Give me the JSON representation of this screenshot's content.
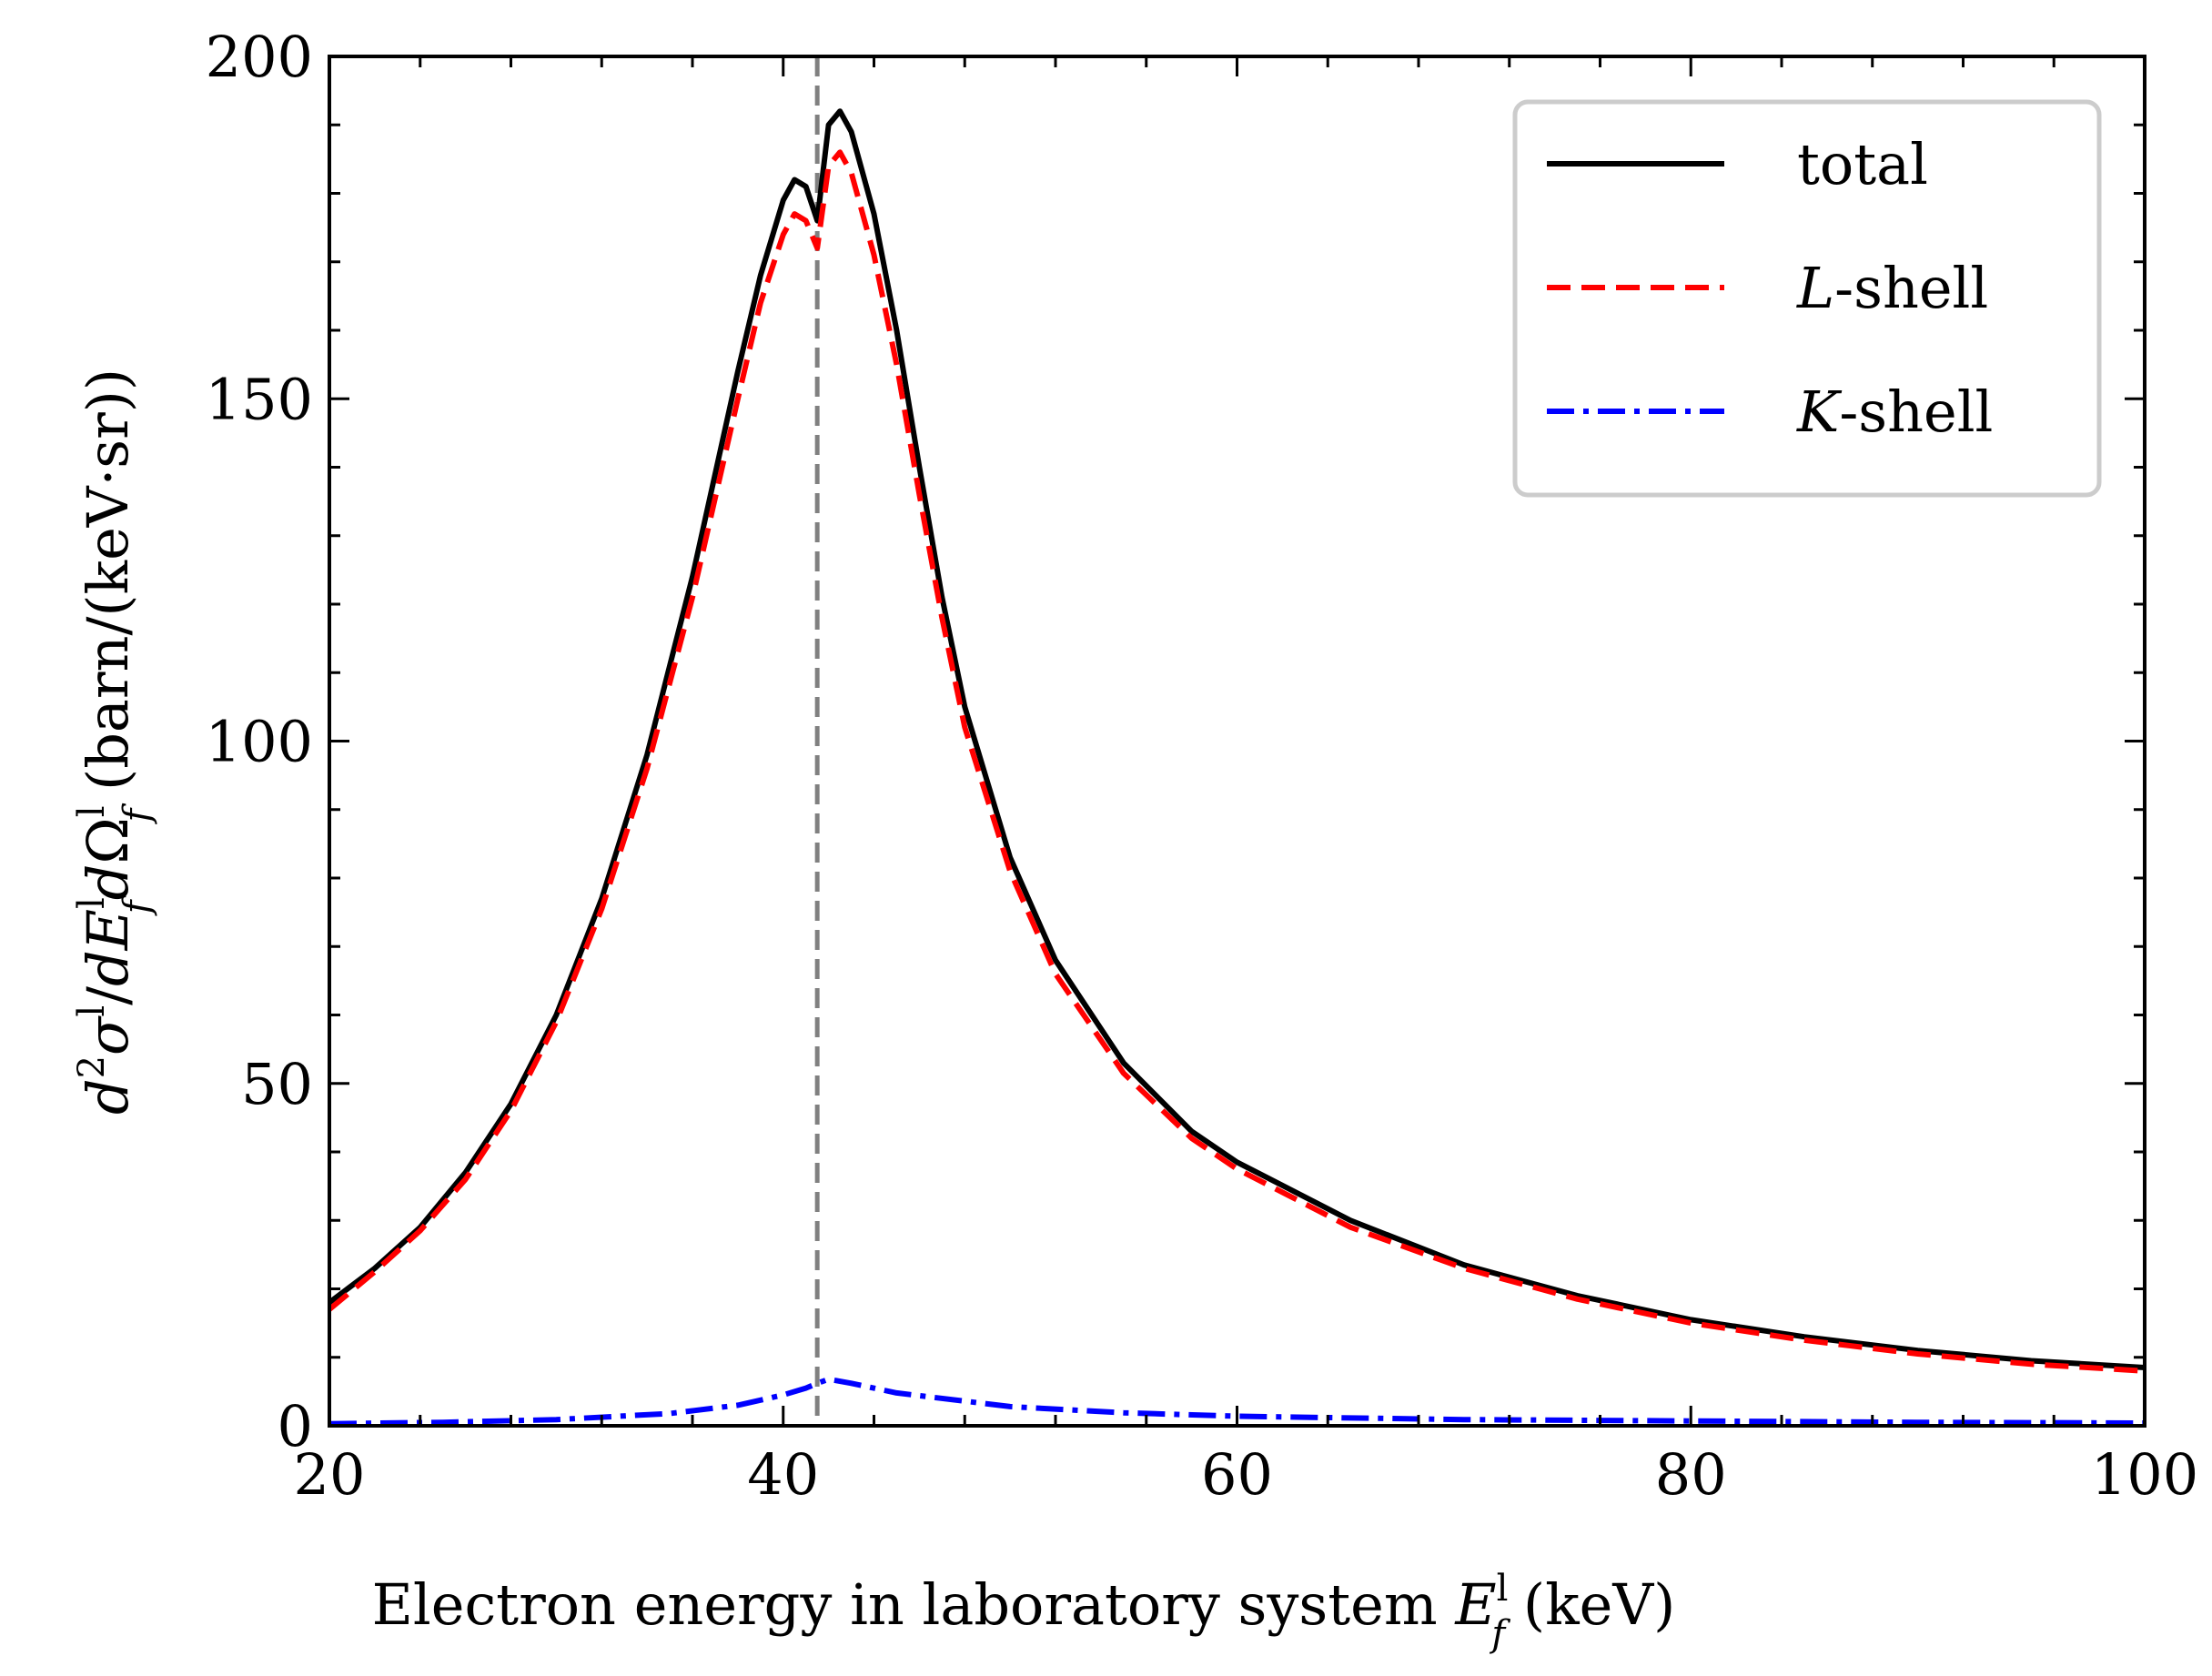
{
  "chart_data": {
    "type": "line",
    "title": "",
    "xlabel": "Electron energy in laboratory system E_f^l (keV)",
    "xlabel_parts": {
      "main": "Electron energy in laboratory system ",
      "var": "E",
      "sup": "l",
      "sub": "f",
      "unit": " (keV)"
    },
    "ylabel": "d²σ^l/dE_f^l dΩ_f^l (barn/(keV·sr))",
    "ylabel_parts": {
      "lhs": "d²σ",
      "sup1": "l",
      "mid": "/dE",
      "sup2": "l",
      "sub2": "f",
      "mid2": "dΩ",
      "sup3": "l",
      "sub3": "f",
      "unit": " (barn/(keV·sr))"
    },
    "xlim": [
      20,
      100
    ],
    "ylim": [
      0,
      200
    ],
    "xticks": [
      20,
      40,
      60,
      80,
      100
    ],
    "xtick_labels": [
      "20",
      "40",
      "60",
      "80",
      "100"
    ],
    "yticks": [
      0,
      50,
      100,
      150,
      200
    ],
    "ytick_labels": [
      "0",
      "50",
      "100",
      "150",
      "200"
    ],
    "reference_line": {
      "x": 41.5,
      "style": "dashed",
      "color": "#808080"
    },
    "legend_position": "top-right",
    "series": [
      {
        "name": "total",
        "legend_label": "total",
        "legend_italic": "",
        "legend_rest": "total",
        "color": "#000000",
        "style": "solid",
        "x": [
          20,
          22,
          24,
          26,
          28,
          30,
          32,
          34,
          36,
          38,
          39,
          40,
          40.5,
          41,
          41.5,
          42,
          42.5,
          43,
          44,
          45,
          46,
          47,
          48,
          50,
          52,
          55,
          58,
          60,
          65,
          70,
          75,
          80,
          85,
          90,
          95,
          100
        ],
        "y": [
          18,
          23,
          29,
          37,
          47,
          60,
          77,
          98,
          124,
          154,
          168,
          179,
          182,
          181,
          176,
          190,
          192,
          189,
          177,
          160,
          140,
          121,
          105,
          83,
          68,
          53,
          43,
          38.5,
          30,
          23.5,
          19,
          15.5,
          13,
          11,
          9.5,
          8.5
        ]
      },
      {
        "name": "L-shell",
        "legend_label": "L-shell",
        "legend_italic": "L",
        "legend_rest": "-shell",
        "color": "#ff0000",
        "style": "dashed",
        "x": [
          20,
          22,
          24,
          26,
          28,
          30,
          32,
          34,
          36,
          38,
          39,
          40,
          40.5,
          41,
          41.5,
          42,
          42.5,
          43,
          44,
          45,
          46,
          47,
          48,
          50,
          52,
          55,
          58,
          60,
          65,
          70,
          75,
          80,
          85,
          90,
          95,
          100
        ],
        "y": [
          17,
          22.5,
          28.5,
          36,
          46,
          59,
          75.5,
          96,
          121,
          150,
          164,
          174,
          177,
          176,
          172,
          184,
          186,
          183,
          171,
          155,
          136,
          118,
          102,
          81,
          66,
          51.5,
          42,
          37.5,
          29,
          23,
          18.5,
          15,
          12.5,
          10.5,
          9,
          8
        ]
      },
      {
        "name": "K-shell",
        "legend_label": "K-shell",
        "legend_italic": "K",
        "legend_rest": "-shell",
        "color": "#0000ff",
        "style": "dashdot",
        "x": [
          20,
          25,
          30,
          35,
          38,
          40,
          41,
          41.5,
          42,
          43,
          45,
          50,
          55,
          60,
          70,
          80,
          90,
          100
        ],
        "y": [
          0.3,
          0.5,
          0.9,
          1.8,
          3,
          4.5,
          5.5,
          6.2,
          6.8,
          6.2,
          4.8,
          2.8,
          1.9,
          1.4,
          0.9,
          0.7,
          0.5,
          0.4
        ]
      }
    ]
  }
}
